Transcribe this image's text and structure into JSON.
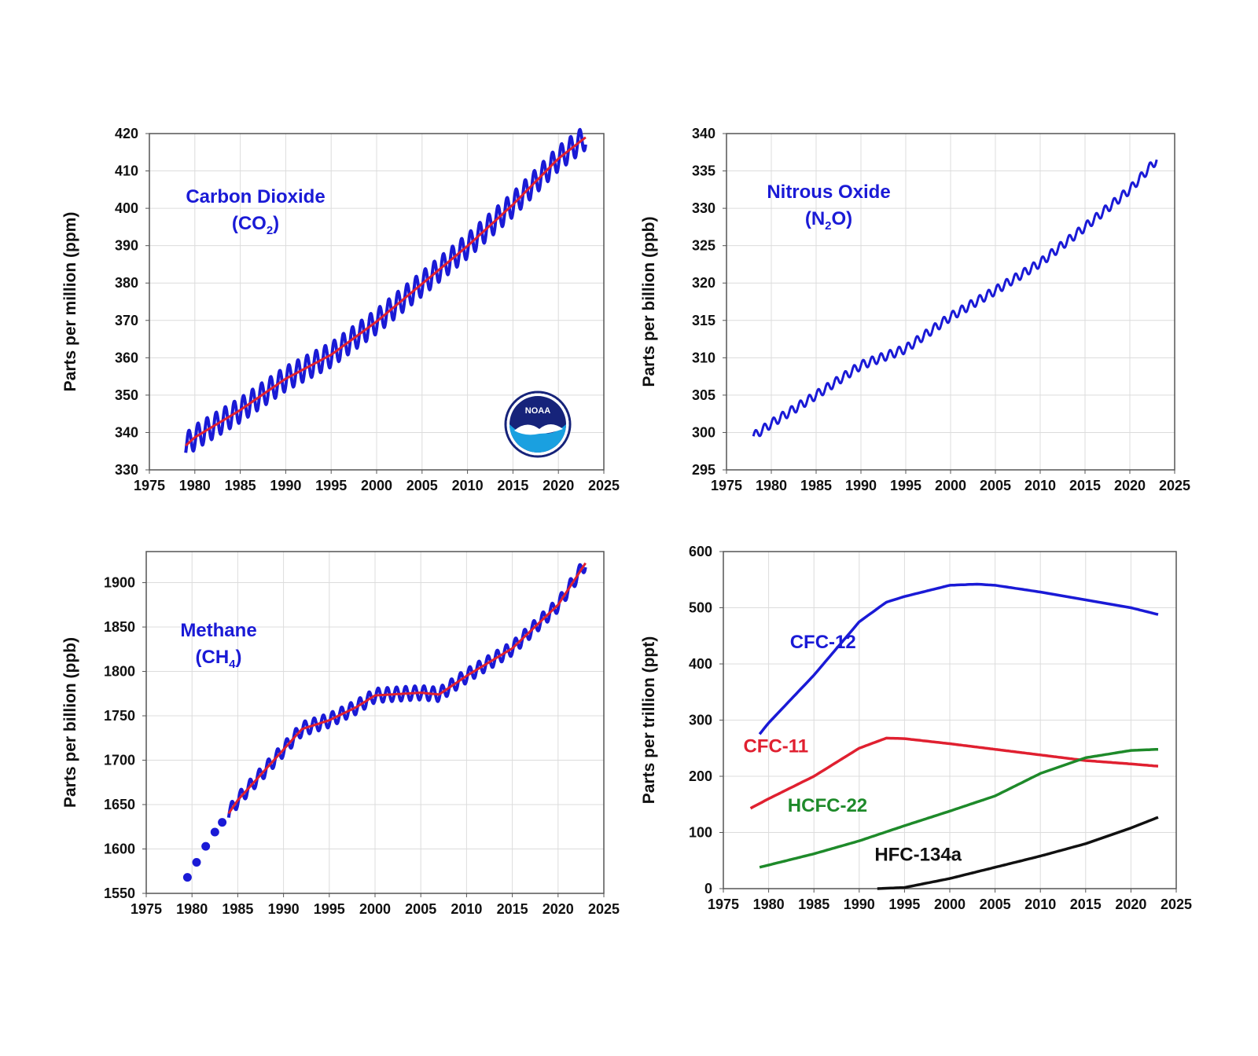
{
  "colors": {
    "blue": "#1a1ad6",
    "red": "#e02030",
    "green": "#1e8a2a",
    "black": "#111111",
    "noaa_navy": "#16237a",
    "noaa_sky": "#1aa0e0"
  },
  "logo": {
    "icon": "noaa-logo-icon",
    "text": "NOAA"
  },
  "chart_data": [
    {
      "id": "co2",
      "type": "line",
      "title": "",
      "ylabel": "Parts per million (ppm)",
      "xlabel": "",
      "xlim": [
        1975,
        2025
      ],
      "ylim": [
        330,
        420
      ],
      "xticks": [
        1975,
        1980,
        1985,
        1990,
        1995,
        2000,
        2005,
        2010,
        2015,
        2020,
        2025
      ],
      "yticks": [
        330,
        340,
        350,
        360,
        370,
        380,
        390,
        400,
        410,
        420
      ],
      "grid": true,
      "annotation": {
        "main": "Carbon Dioxide",
        "formula_pre": "(CO",
        "formula_sub": "2",
        "formula_post": ")",
        "color": "#1a1ad6"
      },
      "series": [
        {
          "style": "seasonal",
          "color": "#1a1ad6",
          "amplitude": 3.3,
          "x": [
            1979,
            1980,
            1985,
            1990,
            1995,
            2000,
            2005,
            2010,
            2015,
            2020,
            2023
          ],
          "y": [
            336.5,
            338.7,
            346.0,
            354.4,
            360.8,
            369.7,
            379.8,
            389.9,
            401.0,
            413.3,
            419.0
          ]
        },
        {
          "style": "trend",
          "color": "#e02030",
          "x": [
            1979,
            1980,
            1985,
            1990,
            1995,
            2000,
            2005,
            2010,
            2015,
            2020,
            2023
          ],
          "y": [
            336.5,
            338.7,
            346.0,
            354.4,
            360.8,
            369.7,
            379.8,
            389.9,
            401.0,
            413.3,
            419.0
          ]
        }
      ]
    },
    {
      "id": "n2o",
      "type": "line",
      "title": "",
      "ylabel": "Parts per billion (ppb)",
      "xlabel": "",
      "xlim": [
        1975,
        2025
      ],
      "ylim": [
        295,
        340
      ],
      "xticks": [
        1975,
        1980,
        1985,
        1990,
        1995,
        2000,
        2005,
        2010,
        2015,
        2020,
        2025
      ],
      "yticks": [
        295,
        300,
        305,
        310,
        315,
        320,
        325,
        330,
        335,
        340
      ],
      "grid": true,
      "annotation": {
        "main": "Nitrous Oxide",
        "formula_pre": "(N",
        "formula_sub": "2",
        "formula_post": "O)",
        "color": "#1a1ad6"
      },
      "series": [
        {
          "style": "wiggle",
          "color": "#1a1ad6",
          "amplitude": 0.6,
          "x": [
            1978,
            1980,
            1985,
            1990,
            1995,
            2000,
            2005,
            2010,
            2015,
            2020,
            2023
          ],
          "y": [
            299.5,
            301.2,
            305.0,
            309.0,
            311.2,
            315.5,
            319.0,
            322.7,
            327.5,
            332.5,
            336.5
          ]
        }
      ]
    },
    {
      "id": "ch4",
      "type": "line",
      "title": "",
      "ylabel": "Parts per billion (ppb)",
      "xlabel": "",
      "xlim": [
        1975,
        2025
      ],
      "ylim": [
        1550,
        1935
      ],
      "xticks": [
        1975,
        1980,
        1985,
        1990,
        1995,
        2000,
        2005,
        2010,
        2015,
        2020,
        2025
      ],
      "yticks": [
        1550,
        1600,
        1650,
        1700,
        1750,
        1800,
        1850,
        1900
      ],
      "grid": true,
      "annotation": {
        "main": "Methane",
        "formula_pre": "(CH",
        "formula_sub": "4",
        "formula_post": ")",
        "color": "#1a1ad6"
      },
      "series": [
        {
          "style": "points",
          "color": "#1a1ad6",
          "x": [
            1979.5,
            1980.5,
            1981.5,
            1982.5,
            1983.3
          ],
          "y": [
            1568,
            1585,
            1603,
            1619,
            1630
          ]
        },
        {
          "style": "seasonal",
          "color": "#1a1ad6",
          "amplitude": 8,
          "x": [
            1984,
            1985,
            1990,
            1992,
            1995,
            1998,
            2000,
            2005,
            2007,
            2010,
            2015,
            2020,
            2023
          ],
          "y": [
            1640,
            1655,
            1712,
            1735,
            1745,
            1760,
            1773,
            1776,
            1774,
            1795,
            1826,
            1875,
            1922
          ]
        },
        {
          "style": "trend",
          "color": "#e02030",
          "x": [
            1984,
            1985,
            1990,
            1992,
            1995,
            1998,
            2000,
            2005,
            2007,
            2010,
            2015,
            2020,
            2023
          ],
          "y": [
            1640,
            1655,
            1712,
            1735,
            1745,
            1760,
            1773,
            1776,
            1774,
            1795,
            1826,
            1875,
            1922
          ]
        }
      ]
    },
    {
      "id": "halocarbons",
      "type": "line",
      "title": "",
      "ylabel": "Parts per trillion (ppt)",
      "xlabel": "",
      "xlim": [
        1975,
        2025
      ],
      "ylim": [
        0,
        600
      ],
      "xticks": [
        1975,
        1980,
        1985,
        1990,
        1995,
        2000,
        2005,
        2010,
        2015,
        2020,
        2025
      ],
      "yticks": [
        0,
        100,
        200,
        300,
        400,
        500,
        600
      ],
      "grid": true,
      "series": [
        {
          "name": "CFC-12",
          "style": "line",
          "color": "#1a1ad6",
          "label_pos": [
            1986.0,
            428
          ],
          "x": [
            1979,
            1980,
            1985,
            1990,
            1993,
            1995,
            2000,
            2003,
            2005,
            2010,
            2015,
            2020,
            2023
          ],
          "y": [
            275,
            295,
            380,
            475,
            510,
            520,
            540,
            542,
            540,
            528,
            514,
            500,
            488
          ]
        },
        {
          "name": "CFC-11",
          "style": "line",
          "color": "#e02030",
          "label_pos": [
            1980.8,
            243
          ],
          "x": [
            1978,
            1980,
            1985,
            1990,
            1993,
            1995,
            2000,
            2005,
            2010,
            2015,
            2020,
            2023
          ],
          "y": [
            143,
            160,
            200,
            250,
            268,
            267,
            258,
            248,
            238,
            228,
            222,
            218
          ]
        },
        {
          "name": "HCFC-22",
          "style": "line",
          "color": "#1e8a2a",
          "label_pos": [
            1986.5,
            137
          ],
          "x": [
            1979,
            1980,
            1985,
            1990,
            1995,
            2000,
            2005,
            2010,
            2015,
            2020,
            2023
          ],
          "y": [
            38,
            42,
            62,
            85,
            112,
            138,
            165,
            205,
            233,
            246,
            248
          ]
        },
        {
          "name": "HFC-134a",
          "style": "line",
          "color": "#111111",
          "label_pos": [
            1996.5,
            50
          ],
          "x": [
            1992,
            1995,
            2000,
            2005,
            2010,
            2015,
            2020,
            2023
          ],
          "y": [
            0,
            2,
            18,
            38,
            58,
            80,
            108,
            127
          ]
        }
      ]
    }
  ]
}
